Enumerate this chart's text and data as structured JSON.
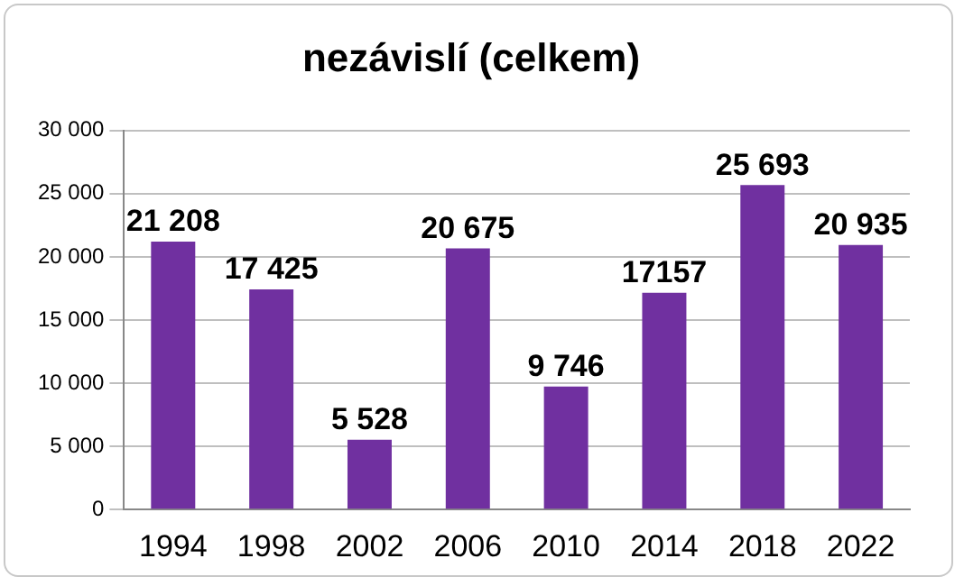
{
  "chart_data": {
    "type": "bar",
    "title": "nezávislí (celkem)",
    "categories": [
      "1994",
      "1998",
      "2002",
      "2006",
      "2010",
      "2014",
      "2018",
      "2022"
    ],
    "values": [
      21208,
      17425,
      5528,
      20675,
      9746,
      17157,
      25693,
      20935
    ],
    "value_labels": [
      "21 208",
      "17 425",
      "5 528",
      "20 675",
      "9 746",
      "17157",
      "25 693",
      "20 935"
    ],
    "color": "#7030a0",
    "ylim": [
      0,
      30000
    ],
    "yticks": [
      {
        "value": 0,
        "label": "0"
      },
      {
        "value": 5000,
        "label": "5 000"
      },
      {
        "value": 10000,
        "label": "10 000"
      },
      {
        "value": 15000,
        "label": "15 000"
      },
      {
        "value": 20000,
        "label": "20 000"
      },
      {
        "value": 25000,
        "label": "25 000"
      },
      {
        "value": 30000,
        "label": "30 000"
      }
    ],
    "grid": "y",
    "legend": false
  }
}
